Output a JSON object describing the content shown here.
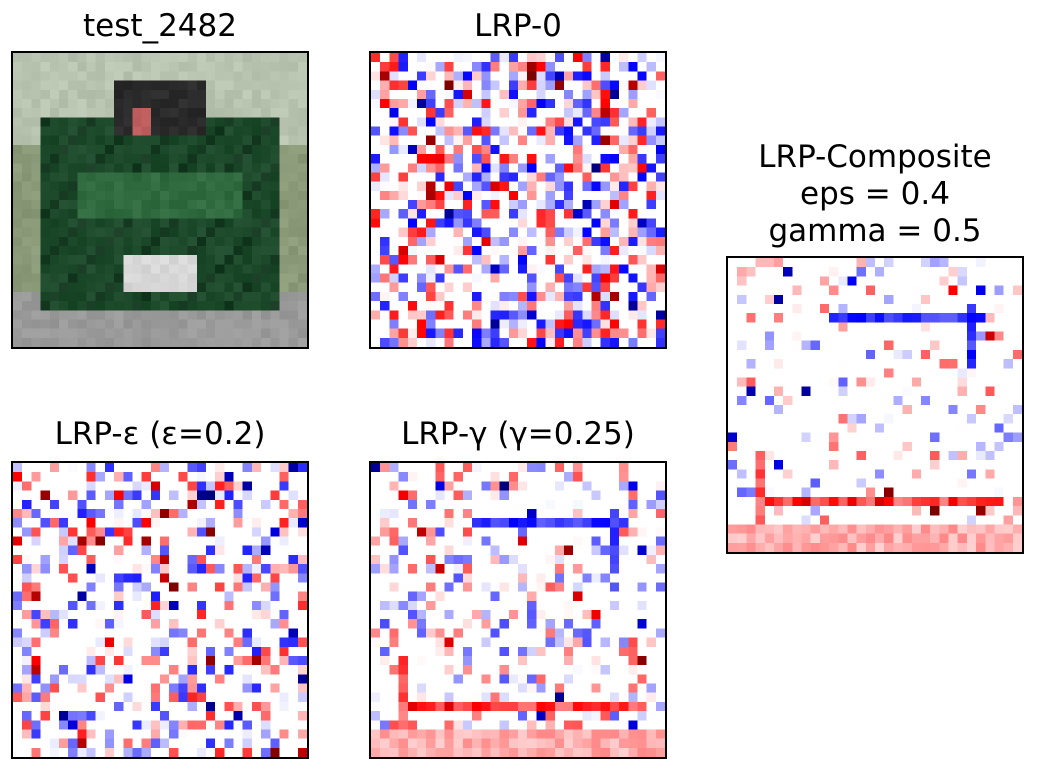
{
  "figure": {
    "panels": [
      {
        "id": "input",
        "kind": "image",
        "title": "test_2482"
      },
      {
        "id": "lrp0",
        "kind": "heatmap",
        "title": "LRP-0",
        "seed": 7,
        "density": 0.6,
        "strength": 0.85
      },
      {
        "id": "composite",
        "kind": "heatmap",
        "title_lines": [
          "LRP-Composite",
          "eps = 0.4",
          "gamma = 0.5"
        ],
        "seed": 11,
        "density": 0.22,
        "strength": 0.55
      },
      {
        "id": "lrp_eps",
        "kind": "heatmap",
        "title": "LRP-ε (ε=0.2)",
        "seed": 23,
        "density": 0.45,
        "strength": 0.75
      },
      {
        "id": "lrp_gamma",
        "kind": "heatmap",
        "title": "LRP-γ (γ=0.25)",
        "seed": 31,
        "density": 0.32,
        "strength": 0.6
      }
    ]
  },
  "chart_data": {
    "type": "heatmap",
    "grid": [
      32,
      32
    ],
    "colormap": "bwr",
    "colors": {
      "positive": "#ff0000",
      "negative": "#0000ff",
      "neutral": "#ffffff",
      "darkest": "#000000"
    },
    "images": [
      "test_2482",
      "LRP-0",
      "LRP-Composite eps = 0.4 gamma = 0.5",
      "LRP-ε (ε=0.2)",
      "LRP-γ (γ=0.25)"
    ],
    "colors_input": {
      "truck_body": "#1e4a2c",
      "background": "#8a9a78",
      "road": "#9a9a9a",
      "sky": "#b8c4b0"
    }
  }
}
